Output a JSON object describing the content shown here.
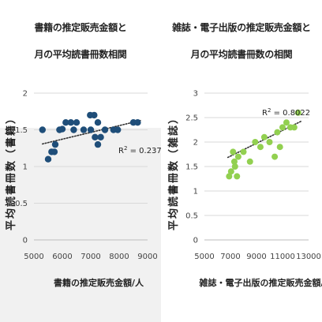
{
  "chart_data": [
    {
      "type": "scatter",
      "title_line1": "書籍の推定販売金額と",
      "title_line2": "月の平均読書冊数相関",
      "xlabel": "書籍の推定販売金額/人",
      "ylabel": "平均読書冊数（書籍）",
      "xlim": [
        5000,
        9000
      ],
      "ylim": [
        0,
        2
      ],
      "xticks": [
        "5000",
        "6000",
        "7000",
        "8000",
        "9000"
      ],
      "yticks": [
        "0",
        "0.5",
        "1",
        "1.5",
        "2"
      ],
      "grid": "horizontal",
      "color": "#1f4e79",
      "trendline": {
        "style": "dotted",
        "y_at_xmin": 1.28,
        "y_at_xmax": 1.65,
        "r2": "0.237"
      },
      "points": [
        {
          "x": 5300,
          "y": 1.5
        },
        {
          "x": 5500,
          "y": 1.1
        },
        {
          "x": 5620,
          "y": 1.2
        },
        {
          "x": 5720,
          "y": 1.2
        },
        {
          "x": 5750,
          "y": 1.3
        },
        {
          "x": 5900,
          "y": 1.5
        },
        {
          "x": 6000,
          "y": 1.51
        },
        {
          "x": 6120,
          "y": 1.6
        },
        {
          "x": 6300,
          "y": 1.6
        },
        {
          "x": 6400,
          "y": 1.5
        },
        {
          "x": 6500,
          "y": 1.6
        },
        {
          "x": 6750,
          "y": 1.5
        },
        {
          "x": 6980,
          "y": 1.7
        },
        {
          "x": 7120,
          "y": 1.7
        },
        {
          "x": 7000,
          "y": 1.5
        },
        {
          "x": 7150,
          "y": 1.4
        },
        {
          "x": 7250,
          "y": 1.3
        },
        {
          "x": 7350,
          "y": 1.4
        },
        {
          "x": 7250,
          "y": 1.6
        },
        {
          "x": 7500,
          "y": 1.5
        },
        {
          "x": 7800,
          "y": 1.5
        },
        {
          "x": 7950,
          "y": 1.5
        },
        {
          "x": 8500,
          "y": 1.6
        },
        {
          "x": 8650,
          "y": 1.6
        }
      ]
    },
    {
      "type": "scatter",
      "title_line1": "雑誌・電子出版の推定販売金額と",
      "title_line2": "月の平均読書冊数の相関",
      "xlabel": "雑誌・電子出版の推定販売金額/人",
      "ylabel": "平均読書冊数（雑誌）",
      "xlim": [
        5000,
        13000
      ],
      "ylim": [
        0,
        3
      ],
      "xticks": [
        "5000",
        "7000",
        "9000",
        "11000",
        "13000"
      ],
      "yticks": [
        "0",
        "0.5",
        "1",
        "1.5",
        "2",
        "2.5",
        "3"
      ],
      "grid": "horizontal",
      "color": "#92d050",
      "trendline": {
        "style": "dotted",
        "y_at_xmin": 1.45,
        "y_at_xmax": 2.5,
        "r2": "0.8022"
      },
      "points": [
        {
          "x": 6900,
          "y": 1.3
        },
        {
          "x": 7050,
          "y": 1.4
        },
        {
          "x": 7200,
          "y": 1.8
        },
        {
          "x": 7300,
          "y": 1.6
        },
        {
          "x": 7350,
          "y": 1.5
        },
        {
          "x": 7500,
          "y": 1.3
        },
        {
          "x": 7600,
          "y": 1.7
        },
        {
          "x": 8000,
          "y": 1.8
        },
        {
          "x": 8500,
          "y": 1.6
        },
        {
          "x": 8900,
          "y": 2.0
        },
        {
          "x": 9300,
          "y": 1.9
        },
        {
          "x": 9600,
          "y": 2.1
        },
        {
          "x": 10000,
          "y": 2.0
        },
        {
          "x": 10400,
          "y": 1.7
        },
        {
          "x": 10600,
          "y": 2.2
        },
        {
          "x": 10800,
          "y": 1.9
        },
        {
          "x": 11000,
          "y": 2.3
        },
        {
          "x": 11300,
          "y": 2.4
        },
        {
          "x": 11600,
          "y": 2.3
        },
        {
          "x": 11900,
          "y": 2.3
        },
        {
          "x": 12200,
          "y": 2.6
        }
      ]
    }
  ]
}
